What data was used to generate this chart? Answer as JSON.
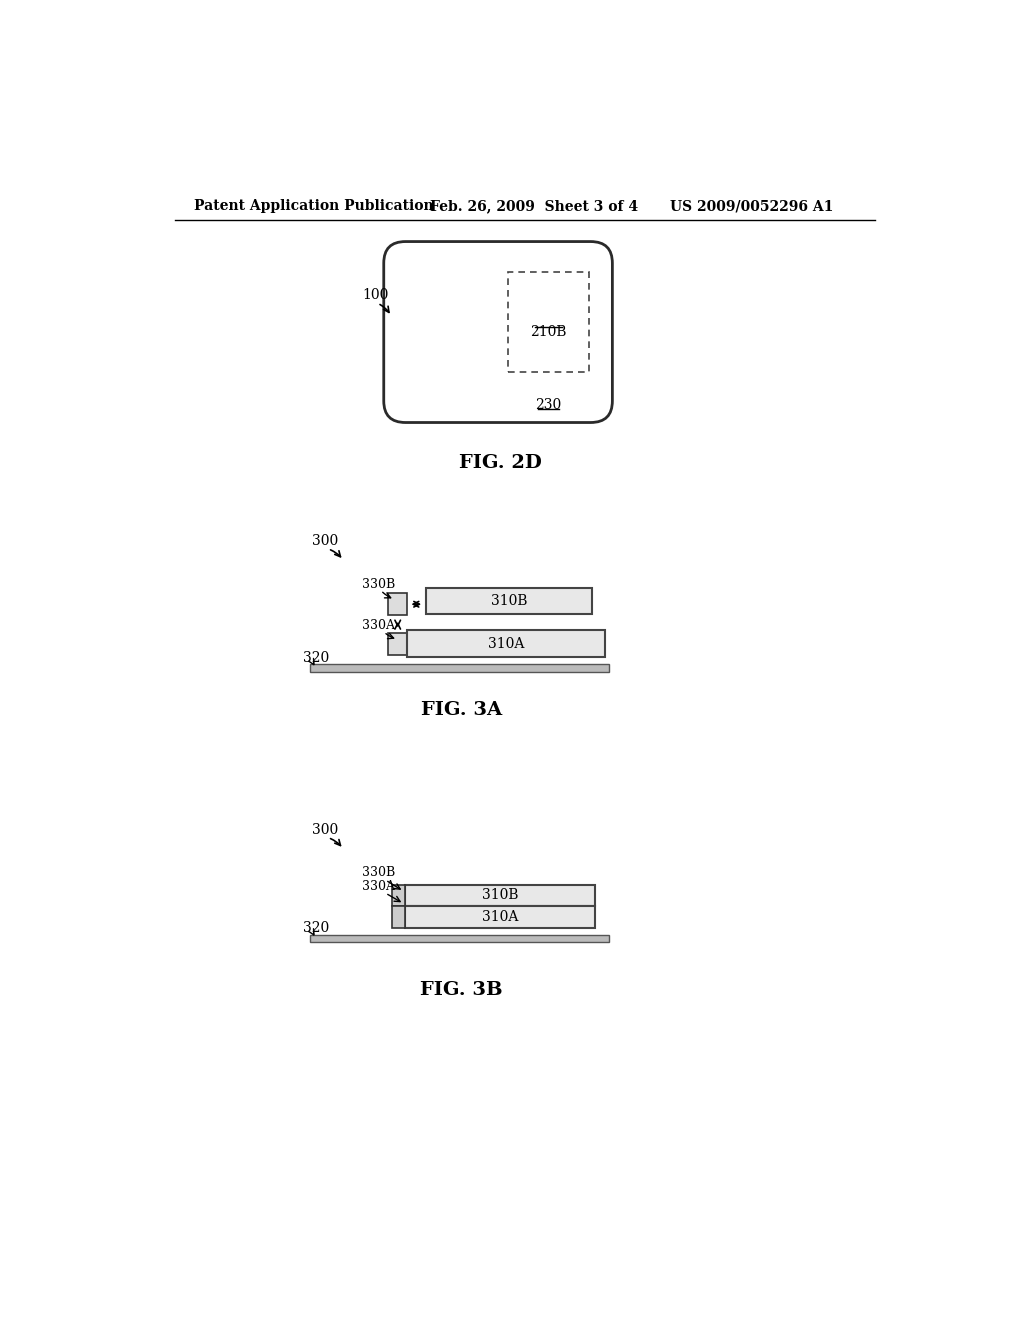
{
  "bg_color": "#ffffff",
  "header_left": "Patent Application Publication",
  "header_mid": "Feb. 26, 2009  Sheet 3 of 4",
  "header_right": "US 2009/0052296 A1",
  "fig2d_label": "FIG. 2D",
  "fig3a_label": "FIG. 3A",
  "fig3b_label": "FIG. 3B",
  "label_100": "100",
  "label_210B": "210B",
  "label_230": "230",
  "label_300a": "300",
  "label_320a": "320",
  "label_330A_a": "330A",
  "label_330B_a": "330B",
  "label_310A_a": "310A",
  "label_310B_a": "310B",
  "label_300b": "300",
  "label_320b": "320",
  "label_330A_b": "330A",
  "label_330B_b": "330B",
  "label_310A_b": "310A",
  "label_310B_b": "310B"
}
